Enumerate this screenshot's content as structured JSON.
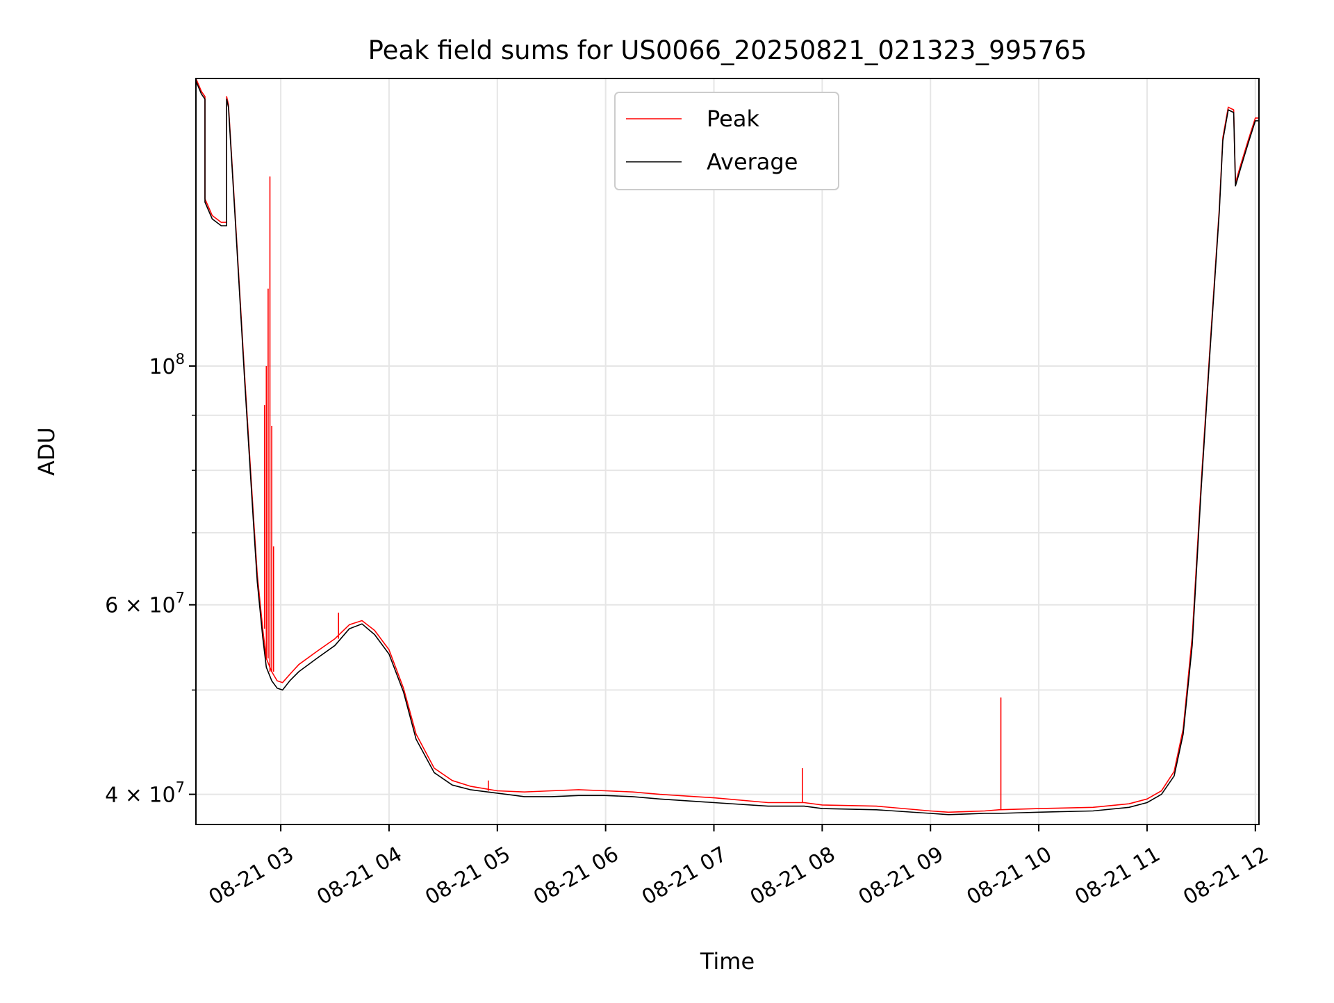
{
  "chart_data": {
    "type": "line",
    "title": "Peak field sums for US0066_20250821_021323_995765",
    "xlabel": "Time",
    "ylabel": "ADU",
    "yscale": "log",
    "grid": true,
    "legend_position": "top-center",
    "xlim": [
      "2025-08-21 02:13",
      "2025-08-21 12:02"
    ],
    "ylim": [
      37500000,
      185000000
    ],
    "x_ticks": [
      {
        "value": "2025-08-21 03:00",
        "label": "08-21 03"
      },
      {
        "value": "2025-08-21 04:00",
        "label": "08-21 04"
      },
      {
        "value": "2025-08-21 05:00",
        "label": "08-21 05"
      },
      {
        "value": "2025-08-21 06:00",
        "label": "08-21 06"
      },
      {
        "value": "2025-08-21 07:00",
        "label": "08-21 07"
      },
      {
        "value": "2025-08-21 08:00",
        "label": "08-21 08"
      },
      {
        "value": "2025-08-21 09:00",
        "label": "08-21 09"
      },
      {
        "value": "2025-08-21 10:00",
        "label": "08-21 10"
      },
      {
        "value": "2025-08-21 11:00",
        "label": "08-21 11"
      },
      {
        "value": "2025-08-21 12:00",
        "label": "08-21 12"
      }
    ],
    "y_ticks_major": [
      {
        "value": 100000000,
        "base": "10",
        "exp": "8"
      },
      {
        "value": 60000000,
        "base": "6 × 10",
        "exp": "7"
      },
      {
        "value": 40000000,
        "base": "4 × 10",
        "exp": "7"
      }
    ],
    "y_ticks_minor": [
      50000000,
      70000000,
      80000000,
      90000000
    ],
    "series": [
      {
        "name": "Peak",
        "color": "#ff0000",
        "x": [
          "2025-08-21 02:13",
          "2025-08-21 02:16",
          "2025-08-21 02:18",
          "2025-08-21 02:18",
          "2025-08-21 02:22",
          "2025-08-21 02:27",
          "2025-08-21 02:30",
          "2025-08-21 02:30",
          "2025-08-21 02:31",
          "2025-08-21 02:35",
          "2025-08-21 02:40",
          "2025-08-21 02:45",
          "2025-08-21 02:47",
          "2025-08-21 02:50",
          "2025-08-21 02:52",
          "2025-08-21 02:55",
          "2025-08-21 02:58",
          "2025-08-21 03:01",
          "2025-08-21 03:05",
          "2025-08-21 03:10",
          "2025-08-21 03:20",
          "2025-08-21 03:30",
          "2025-08-21 03:38",
          "2025-08-21 03:45",
          "2025-08-21 03:52",
          "2025-08-21 04:00",
          "2025-08-21 04:08",
          "2025-08-21 04:15",
          "2025-08-21 04:25",
          "2025-08-21 04:35",
          "2025-08-21 04:45",
          "2025-08-21 05:00",
          "2025-08-21 05:15",
          "2025-08-21 05:30",
          "2025-08-21 05:45",
          "2025-08-21 06:00",
          "2025-08-21 06:15",
          "2025-08-21 06:30",
          "2025-08-21 07:00",
          "2025-08-21 07:30",
          "2025-08-21 07:50",
          "2025-08-21 08:00",
          "2025-08-21 08:30",
          "2025-08-21 09:00",
          "2025-08-21 09:10",
          "2025-08-21 09:30",
          "2025-08-21 09:38",
          "2025-08-21 10:00",
          "2025-08-21 10:30",
          "2025-08-21 10:50",
          "2025-08-21 11:00",
          "2025-08-21 11:08",
          "2025-08-21 11:15",
          "2025-08-21 11:20",
          "2025-08-21 11:25",
          "2025-08-21 11:30",
          "2025-08-21 11:35",
          "2025-08-21 11:40",
          "2025-08-21 11:42",
          "2025-08-21 11:45",
          "2025-08-21 11:48",
          "2025-08-21 11:49",
          "2025-08-21 11:52",
          "2025-08-21 11:56",
          "2025-08-21 12:00",
          "2025-08-21 12:02"
        ],
        "y": [
          185000000,
          180000000,
          178000000,
          143000000,
          138000000,
          136000000,
          136000000,
          178000000,
          175000000,
          136000000,
          98000000,
          72000000,
          64000000,
          57000000,
          53500000,
          52000000,
          51000000,
          50800000,
          51700000,
          52800000,
          54300000,
          55800000,
          57500000,
          58000000,
          56800000,
          54500000,
          50200000,
          45500000,
          42300000,
          41200000,
          40700000,
          40300000,
          40200000,
          40300000,
          40400000,
          40300000,
          40200000,
          40000000,
          39700000,
          39300000,
          39300000,
          39100000,
          39000000,
          38600000,
          38500000,
          38600000,
          38700000,
          38800000,
          38900000,
          39200000,
          39600000,
          40300000,
          42000000,
          46000000,
          56000000,
          78000000,
          105000000,
          140000000,
          163000000,
          174000000,
          173000000,
          148000000,
          154000000,
          162000000,
          170000000,
          170000000
        ]
      },
      {
        "name": "Average",
        "color": "#000000",
        "x": [
          "2025-08-21 02:13",
          "2025-08-21 02:16",
          "2025-08-21 02:18",
          "2025-08-21 02:18",
          "2025-08-21 02:22",
          "2025-08-21 02:27",
          "2025-08-21 02:30",
          "2025-08-21 02:30",
          "2025-08-21 02:31",
          "2025-08-21 02:35",
          "2025-08-21 02:40",
          "2025-08-21 02:45",
          "2025-08-21 02:47",
          "2025-08-21 02:50",
          "2025-08-21 02:52",
          "2025-08-21 02:55",
          "2025-08-21 02:58",
          "2025-08-21 03:01",
          "2025-08-21 03:05",
          "2025-08-21 03:10",
          "2025-08-21 03:20",
          "2025-08-21 03:30",
          "2025-08-21 03:38",
          "2025-08-21 03:45",
          "2025-08-21 03:52",
          "2025-08-21 04:00",
          "2025-08-21 04:08",
          "2025-08-21 04:15",
          "2025-08-21 04:25",
          "2025-08-21 04:35",
          "2025-08-21 04:45",
          "2025-08-21 05:00",
          "2025-08-21 05:15",
          "2025-08-21 05:30",
          "2025-08-21 05:45",
          "2025-08-21 06:00",
          "2025-08-21 06:15",
          "2025-08-21 06:30",
          "2025-08-21 07:00",
          "2025-08-21 07:30",
          "2025-08-21 07:50",
          "2025-08-21 08:00",
          "2025-08-21 08:30",
          "2025-08-21 09:00",
          "2025-08-21 09:10",
          "2025-08-21 09:30",
          "2025-08-21 09:38",
          "2025-08-21 10:00",
          "2025-08-21 10:30",
          "2025-08-21 10:50",
          "2025-08-21 11:00",
          "2025-08-21 11:08",
          "2025-08-21 11:15",
          "2025-08-21 11:20",
          "2025-08-21 11:25",
          "2025-08-21 11:30",
          "2025-08-21 11:35",
          "2025-08-21 11:40",
          "2025-08-21 11:42",
          "2025-08-21 11:45",
          "2025-08-21 11:48",
          "2025-08-21 11:49",
          "2025-08-21 11:52",
          "2025-08-21 11:56",
          "2025-08-21 12:00",
          "2025-08-21 12:02"
        ],
        "y": [
          184000000,
          179000000,
          177000000,
          142000000,
          137000000,
          135000000,
          135000000,
          177000000,
          174000000,
          135000000,
          97000000,
          71000000,
          63000000,
          56000000,
          52500000,
          51000000,
          50200000,
          50000000,
          51000000,
          52000000,
          53500000,
          55000000,
          57000000,
          57600000,
          56300000,
          54000000,
          49800000,
          45000000,
          41900000,
          40800000,
          40400000,
          40100000,
          39800000,
          39800000,
          39900000,
          39900000,
          39800000,
          39600000,
          39300000,
          39000000,
          39000000,
          38800000,
          38700000,
          38400000,
          38300000,
          38400000,
          38400000,
          38500000,
          38600000,
          38900000,
          39300000,
          40000000,
          41600000,
          45500000,
          55000000,
          77000000,
          104000000,
          139000000,
          162000000,
          173000000,
          172000000,
          147000000,
          153000000,
          161000000,
          169000000,
          169000000
        ]
      }
    ],
    "annotations": [
      {
        "series": "Peak",
        "note": "spikes",
        "points": [
          {
            "x": "2025-08-21 02:51",
            "y": 92000000
          },
          {
            "x": "2025-08-21 02:52",
            "y": 100000000
          },
          {
            "x": "2025-08-21 02:53",
            "y": 118000000
          },
          {
            "x": "2025-08-21 02:54",
            "y": 150000000
          },
          {
            "x": "2025-08-21 02:55",
            "y": 88000000
          },
          {
            "x": "2025-08-21 02:56",
            "y": 68000000
          },
          {
            "x": "2025-08-21 03:32",
            "y": 59000000
          },
          {
            "x": "2025-08-21 04:55",
            "y": 41200000
          },
          {
            "x": "2025-08-21 07:49",
            "y": 42300000
          },
          {
            "x": "2025-08-21 09:39",
            "y": 49200000
          }
        ]
      }
    ]
  }
}
